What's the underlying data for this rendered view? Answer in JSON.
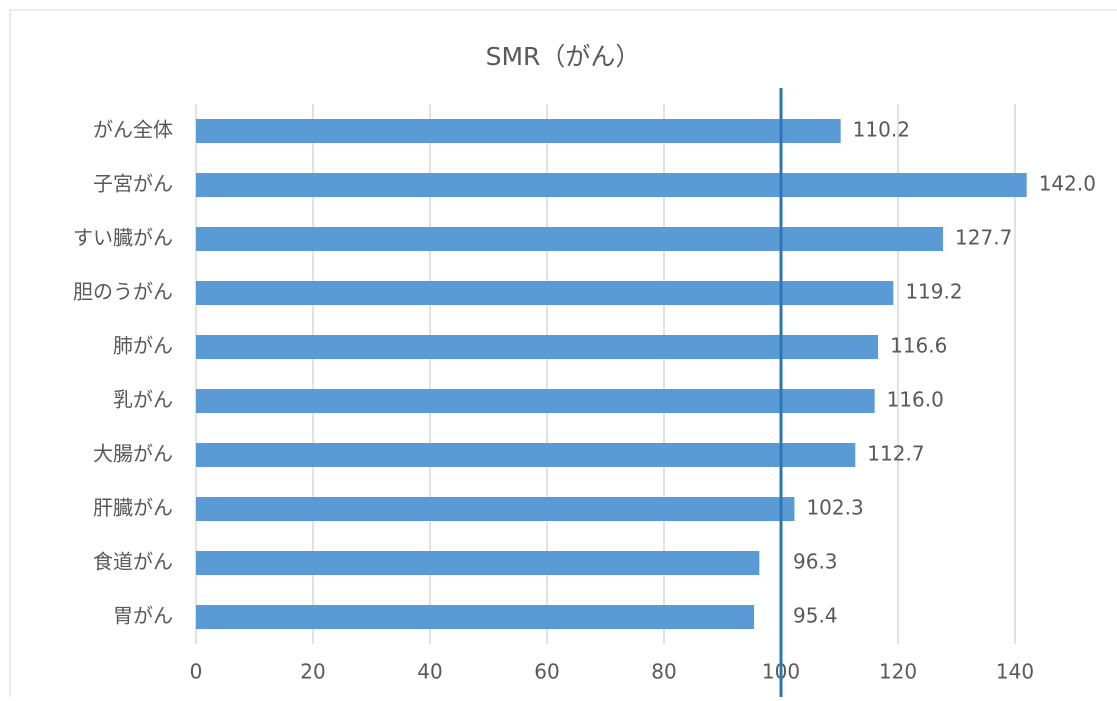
{
  "chart_data": {
    "type": "bar",
    "orientation": "horizontal",
    "title": "SMR（がん）",
    "categories": [
      "がん全体",
      "子宮がん",
      "すい臓がん",
      "胆のうがん",
      "肺がん",
      "乳がん",
      "大腸がん",
      "肝臓がん",
      "食道がん",
      "胃がん"
    ],
    "values": [
      110.2,
      142.0,
      127.7,
      119.2,
      116.6,
      116.0,
      112.7,
      102.3,
      96.3,
      95.4
    ],
    "value_labels": [
      "110.2",
      "142.0",
      "127.7",
      "119.2",
      "116.6",
      "116.0",
      "112.7",
      "102.3",
      "96.3",
      "95.4"
    ],
    "color": "#5b9bd5",
    "xlim": [
      0,
      150
    ],
    "xticks": [
      0,
      20,
      40,
      60,
      80,
      100,
      120,
      140
    ],
    "grid": true,
    "reference_line": 100,
    "reference_color": "#2e75b6"
  }
}
